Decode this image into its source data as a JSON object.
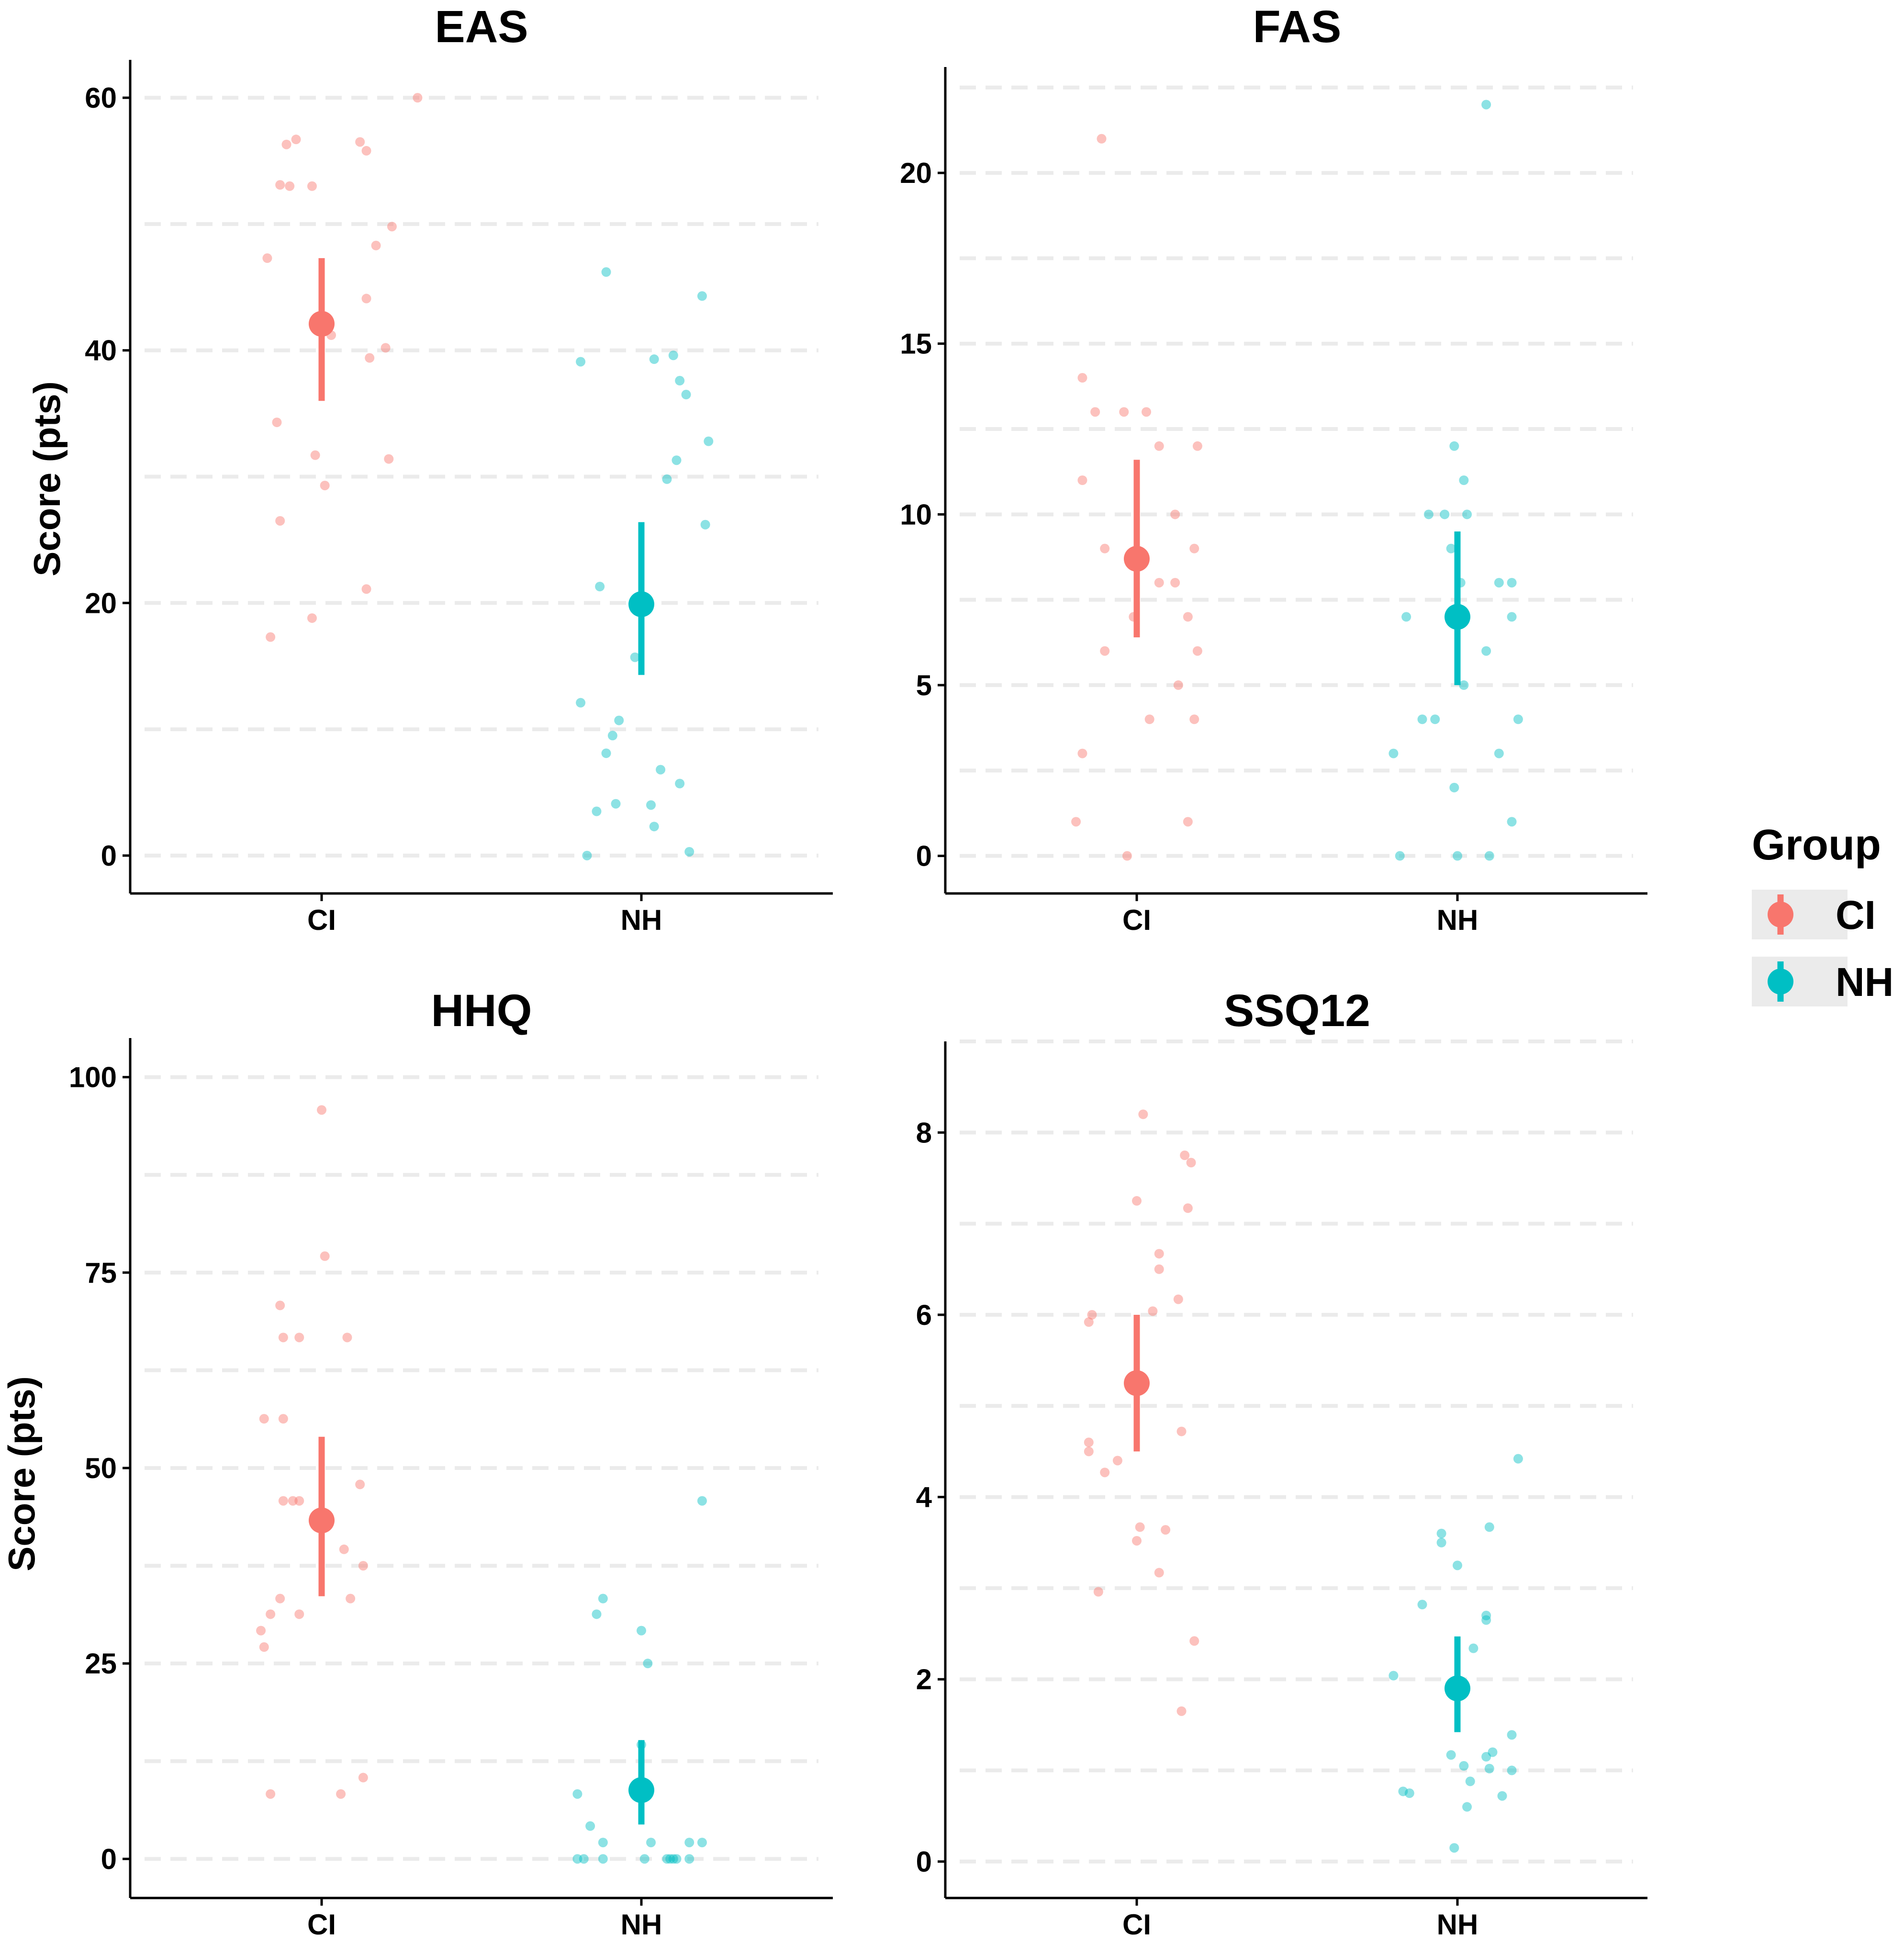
{
  "colors": {
    "CI": "#F8766D",
    "NH": "#00BFC4",
    "grid": "#EBEBEB",
    "axis": "#000000",
    "legend_key_bg": "#EBEBEB"
  },
  "legend": {
    "title": "Group",
    "items": [
      {
        "label": "CI",
        "color": "#F8766D"
      },
      {
        "label": "NH",
        "color": "#00BFC4"
      }
    ]
  },
  "chart_data": [
    {
      "type": "scatter",
      "title": "EAS",
      "xlabel": "",
      "ylabel": "Score (pts)",
      "categories": [
        "CI",
        "NH"
      ],
      "ylim": [
        -3,
        63
      ],
      "yticks": [
        0,
        20,
        40,
        60
      ],
      "ygrid_dashed": [
        0,
        10,
        20,
        30,
        40,
        50,
        60
      ],
      "series": [
        {
          "name": "CI",
          "mean": 42.1,
          "lower": 36.0,
          "upper": 47.3,
          "points": [
            {
              "dx": 0.3,
              "y": 60.0
            },
            {
              "dx": -0.08,
              "y": 56.7
            },
            {
              "dx": -0.11,
              "y": 56.3
            },
            {
              "dx": 0.12,
              "y": 56.5
            },
            {
              "dx": 0.14,
              "y": 55.8
            },
            {
              "dx": -0.13,
              "y": 53.1
            },
            {
              "dx": -0.1,
              "y": 53.0
            },
            {
              "dx": -0.03,
              "y": 53.0
            },
            {
              "dx": 0.22,
              "y": 49.8
            },
            {
              "dx": 0.17,
              "y": 48.3
            },
            {
              "dx": -0.17,
              "y": 47.3
            },
            {
              "dx": 0.14,
              "y": 44.1
            },
            {
              "dx": 0.03,
              "y": 41.2
            },
            {
              "dx": 0.2,
              "y": 40.2
            },
            {
              "dx": 0.15,
              "y": 39.4
            },
            {
              "dx": -0.14,
              "y": 34.3
            },
            {
              "dx": -0.02,
              "y": 31.7
            },
            {
              "dx": 0.21,
              "y": 31.4
            },
            {
              "dx": 0.01,
              "y": 29.3
            },
            {
              "dx": -0.13,
              "y": 26.5
            },
            {
              "dx": 0.14,
              "y": 21.1
            },
            {
              "dx": -0.03,
              "y": 18.8
            },
            {
              "dx": -0.16,
              "y": 17.3
            }
          ]
        },
        {
          "name": "NH",
          "mean": 19.9,
          "lower": 14.3,
          "upper": 26.4,
          "points": [
            {
              "dx": -0.11,
              "y": 46.2
            },
            {
              "dx": 0.19,
              "y": 44.3
            },
            {
              "dx": 0.1,
              "y": 39.6
            },
            {
              "dx": 0.04,
              "y": 39.3
            },
            {
              "dx": -0.19,
              "y": 39.1
            },
            {
              "dx": 0.12,
              "y": 37.6
            },
            {
              "dx": 0.14,
              "y": 36.5
            },
            {
              "dx": 0.21,
              "y": 32.8
            },
            {
              "dx": 0.11,
              "y": 31.3
            },
            {
              "dx": 0.08,
              "y": 29.8
            },
            {
              "dx": 0.2,
              "y": 26.2
            },
            {
              "dx": -0.13,
              "y": 21.3
            },
            {
              "dx": -0.02,
              "y": 15.7
            },
            {
              "dx": -0.19,
              "y": 12.1
            },
            {
              "dx": -0.07,
              "y": 10.7
            },
            {
              "dx": -0.09,
              "y": 9.5
            },
            {
              "dx": -0.11,
              "y": 8.1
            },
            {
              "dx": 0.06,
              "y": 6.8
            },
            {
              "dx": 0.12,
              "y": 5.7
            },
            {
              "dx": -0.08,
              "y": 4.1
            },
            {
              "dx": 0.03,
              "y": 4.0
            },
            {
              "dx": -0.14,
              "y": 3.5
            },
            {
              "dx": 0.04,
              "y": 2.3
            },
            {
              "dx": 0.15,
              "y": 0.3
            },
            {
              "dx": -0.17,
              "y": 0.0
            }
          ]
        }
      ]
    },
    {
      "type": "scatter",
      "title": "FAS",
      "xlabel": "",
      "ylabel": "",
      "categories": [
        "CI",
        "NH"
      ],
      "ylim": [
        -1.1,
        23.1
      ],
      "yticks": [
        0,
        5,
        10,
        15,
        20
      ],
      "ygrid_dashed": [
        0,
        2.5,
        5,
        7.5,
        10,
        12.5,
        15,
        17.5,
        20,
        22.5
      ],
      "series": [
        {
          "name": "CI",
          "mean": 8.7,
          "lower": 6.4,
          "upper": 11.6,
          "points": [
            {
              "dx": -0.11,
              "y": 21.0
            },
            {
              "dx": -0.17,
              "y": 14.0
            },
            {
              "dx": -0.13,
              "y": 13.0
            },
            {
              "dx": -0.04,
              "y": 13.0
            },
            {
              "dx": 0.03,
              "y": 13.0
            },
            {
              "dx": 0.07,
              "y": 12.0
            },
            {
              "dx": 0.19,
              "y": 12.0
            },
            {
              "dx": -0.17,
              "y": 11.0
            },
            {
              "dx": 0.12,
              "y": 10.0
            },
            {
              "dx": -0.1,
              "y": 9.0
            },
            {
              "dx": 0.18,
              "y": 9.0
            },
            {
              "dx": 0.07,
              "y": 8.0
            },
            {
              "dx": 0.12,
              "y": 8.0
            },
            {
              "dx": -0.01,
              "y": 7.0
            },
            {
              "dx": 0.16,
              "y": 7.0
            },
            {
              "dx": -0.1,
              "y": 6.0
            },
            {
              "dx": 0.19,
              "y": 6.0
            },
            {
              "dx": 0.13,
              "y": 5.0
            },
            {
              "dx": 0.04,
              "y": 4.0
            },
            {
              "dx": 0.18,
              "y": 4.0
            },
            {
              "dx": -0.17,
              "y": 3.0
            },
            {
              "dx": -0.19,
              "y": 1.0
            },
            {
              "dx": 0.16,
              "y": 1.0
            },
            {
              "dx": -0.03,
              "y": 0.0
            }
          ]
        },
        {
          "name": "NH",
          "mean": 7.0,
          "lower": 5.0,
          "upper": 9.5,
          "points": [
            {
              "dx": 0.09,
              "y": 22.0
            },
            {
              "dx": -0.01,
              "y": 12.0
            },
            {
              "dx": 0.02,
              "y": 11.0
            },
            {
              "dx": -0.09,
              "y": 10.0
            },
            {
              "dx": -0.04,
              "y": 10.0
            },
            {
              "dx": 0.03,
              "y": 10.0
            },
            {
              "dx": -0.02,
              "y": 9.0
            },
            {
              "dx": 0.13,
              "y": 8.0
            },
            {
              "dx": 0.17,
              "y": 8.0
            },
            {
              "dx": 0.01,
              "y": 8.0
            },
            {
              "dx": -0.16,
              "y": 7.0
            },
            {
              "dx": 0.17,
              "y": 7.0
            },
            {
              "dx": 0.09,
              "y": 6.0
            },
            {
              "dx": 0.02,
              "y": 5.0
            },
            {
              "dx": -0.11,
              "y": 4.0
            },
            {
              "dx": -0.07,
              "y": 4.0
            },
            {
              "dx": 0.19,
              "y": 4.0
            },
            {
              "dx": -0.2,
              "y": 3.0
            },
            {
              "dx": 0.13,
              "y": 3.0
            },
            {
              "dx": -0.01,
              "y": 2.0
            },
            {
              "dx": 0.17,
              "y": 1.0
            },
            {
              "dx": -0.18,
              "y": 0.0
            },
            {
              "dx": 0.0,
              "y": 0.0
            },
            {
              "dx": 0.1,
              "y": 0.0
            }
          ]
        }
      ]
    },
    {
      "type": "scatter",
      "title": "HHQ",
      "xlabel": "",
      "ylabel": "Score (pts)",
      "categories": [
        "CI",
        "NH"
      ],
      "ylim": [
        -5,
        105
      ],
      "yticks": [
        0,
        25,
        50,
        75,
        100
      ],
      "ygrid_dashed": [
        0,
        12.5,
        25,
        37.5,
        50,
        62.5,
        75,
        87.5,
        100
      ],
      "series": [
        {
          "name": "CI",
          "mean": 43.3,
          "lower": 33.6,
          "upper": 54.0,
          "points": [
            {
              "dx": 0.0,
              "y": 95.8
            },
            {
              "dx": 0.01,
              "y": 77.1
            },
            {
              "dx": -0.13,
              "y": 70.8
            },
            {
              "dx": -0.12,
              "y": 66.7
            },
            {
              "dx": -0.07,
              "y": 66.7
            },
            {
              "dx": 0.08,
              "y": 66.7
            },
            {
              "dx": -0.18,
              "y": 56.3
            },
            {
              "dx": -0.12,
              "y": 56.3
            },
            {
              "dx": -0.12,
              "y": 45.8
            },
            {
              "dx": -0.09,
              "y": 45.8
            },
            {
              "dx": -0.07,
              "y": 45.8
            },
            {
              "dx": 0.12,
              "y": 47.9
            },
            {
              "dx": 0.07,
              "y": 39.6
            },
            {
              "dx": 0.13,
              "y": 37.5
            },
            {
              "dx": -0.13,
              "y": 33.3
            },
            {
              "dx": 0.09,
              "y": 33.3
            },
            {
              "dx": -0.16,
              "y": 31.3
            },
            {
              "dx": -0.07,
              "y": 31.3
            },
            {
              "dx": -0.19,
              "y": 29.2
            },
            {
              "dx": -0.18,
              "y": 27.1
            },
            {
              "dx": 0.13,
              "y": 10.4
            },
            {
              "dx": -0.16,
              "y": 8.3
            },
            {
              "dx": 0.06,
              "y": 8.3
            }
          ]
        },
        {
          "name": "NH",
          "mean": 8.8,
          "lower": 4.4,
          "upper": 15.2,
          "points": [
            {
              "dx": 0.19,
              "y": 45.8
            },
            {
              "dx": -0.12,
              "y": 33.3
            },
            {
              "dx": -0.14,
              "y": 31.3
            },
            {
              "dx": 0.0,
              "y": 29.2
            },
            {
              "dx": 0.02,
              "y": 25.0
            },
            {
              "dx": 0.0,
              "y": 14.6
            },
            {
              "dx": -0.2,
              "y": 8.3
            },
            {
              "dx": -0.16,
              "y": 4.2
            },
            {
              "dx": -0.12,
              "y": 2.1
            },
            {
              "dx": 0.03,
              "y": 2.1
            },
            {
              "dx": 0.15,
              "y": 2.1
            },
            {
              "dx": 0.19,
              "y": 2.1
            },
            {
              "dx": -0.2,
              "y": 0.0
            },
            {
              "dx": -0.18,
              "y": 0.0
            },
            {
              "dx": -0.12,
              "y": 0.0
            },
            {
              "dx": 0.01,
              "y": 0.0
            },
            {
              "dx": 0.08,
              "y": 0.0
            },
            {
              "dx": 0.09,
              "y": 0.0
            },
            {
              "dx": 0.1,
              "y": 0.0
            },
            {
              "dx": 0.11,
              "y": 0.0
            },
            {
              "dx": 0.15,
              "y": 0.0
            }
          ]
        }
      ]
    },
    {
      "type": "scatter",
      "title": "SSQ12",
      "xlabel": "",
      "ylabel": "",
      "categories": [
        "CI",
        "NH"
      ],
      "ylim": [
        -0.4,
        9.0
      ],
      "yticks": [
        0,
        2,
        4,
        6,
        8
      ],
      "ygrid_dashed": [
        0,
        1,
        2,
        3,
        4,
        5,
        6,
        7,
        8,
        9
      ],
      "series": [
        {
          "name": "CI",
          "mean": 5.25,
          "lower": 4.5,
          "upper": 6.0,
          "points": [
            {
              "dx": 0.02,
              "y": 8.2
            },
            {
              "dx": 0.15,
              "y": 7.75
            },
            {
              "dx": 0.17,
              "y": 7.67
            },
            {
              "dx": 0.0,
              "y": 7.25
            },
            {
              "dx": 0.16,
              "y": 7.17
            },
            {
              "dx": 0.07,
              "y": 6.67
            },
            {
              "dx": 0.07,
              "y": 6.5
            },
            {
              "dx": 0.13,
              "y": 6.17
            },
            {
              "dx": 0.05,
              "y": 6.04
            },
            {
              "dx": -0.14,
              "y": 6.0
            },
            {
              "dx": -0.15,
              "y": 5.92
            },
            {
              "dx": -0.15,
              "y": 4.6
            },
            {
              "dx": -0.15,
              "y": 4.5
            },
            {
              "dx": -0.06,
              "y": 4.4
            },
            {
              "dx": -0.1,
              "y": 4.27
            },
            {
              "dx": 0.14,
              "y": 4.72
            },
            {
              "dx": 0.01,
              "y": 3.67
            },
            {
              "dx": 0.09,
              "y": 3.64
            },
            {
              "dx": 0.0,
              "y": 3.52
            },
            {
              "dx": 0.07,
              "y": 3.17
            },
            {
              "dx": -0.12,
              "y": 2.96
            },
            {
              "dx": 0.18,
              "y": 2.42
            },
            {
              "dx": 0.14,
              "y": 1.65
            }
          ]
        },
        {
          "name": "NH",
          "mean": 1.9,
          "lower": 1.42,
          "upper": 2.47,
          "points": [
            {
              "dx": 0.19,
              "y": 4.42
            },
            {
              "dx": 0.1,
              "y": 3.67
            },
            {
              "dx": -0.05,
              "y": 3.6
            },
            {
              "dx": -0.05,
              "y": 3.5
            },
            {
              "dx": 0.0,
              "y": 3.25
            },
            {
              "dx": -0.11,
              "y": 2.82
            },
            {
              "dx": 0.09,
              "y": 2.7
            },
            {
              "dx": 0.09,
              "y": 2.65
            },
            {
              "dx": 0.05,
              "y": 2.34
            },
            {
              "dx": -0.2,
              "y": 2.04
            },
            {
              "dx": 0.17,
              "y": 1.39
            },
            {
              "dx": 0.11,
              "y": 1.2
            },
            {
              "dx": -0.02,
              "y": 1.17
            },
            {
              "dx": 0.09,
              "y": 1.15
            },
            {
              "dx": 0.02,
              "y": 1.05
            },
            {
              "dx": 0.1,
              "y": 1.02
            },
            {
              "dx": 0.17,
              "y": 1.0
            },
            {
              "dx": 0.04,
              "y": 0.88
            },
            {
              "dx": -0.17,
              "y": 0.77
            },
            {
              "dx": -0.15,
              "y": 0.75
            },
            {
              "dx": 0.14,
              "y": 0.72
            },
            {
              "dx": 0.03,
              "y": 0.6
            },
            {
              "dx": -0.01,
              "y": 0.15
            }
          ]
        }
      ]
    }
  ]
}
